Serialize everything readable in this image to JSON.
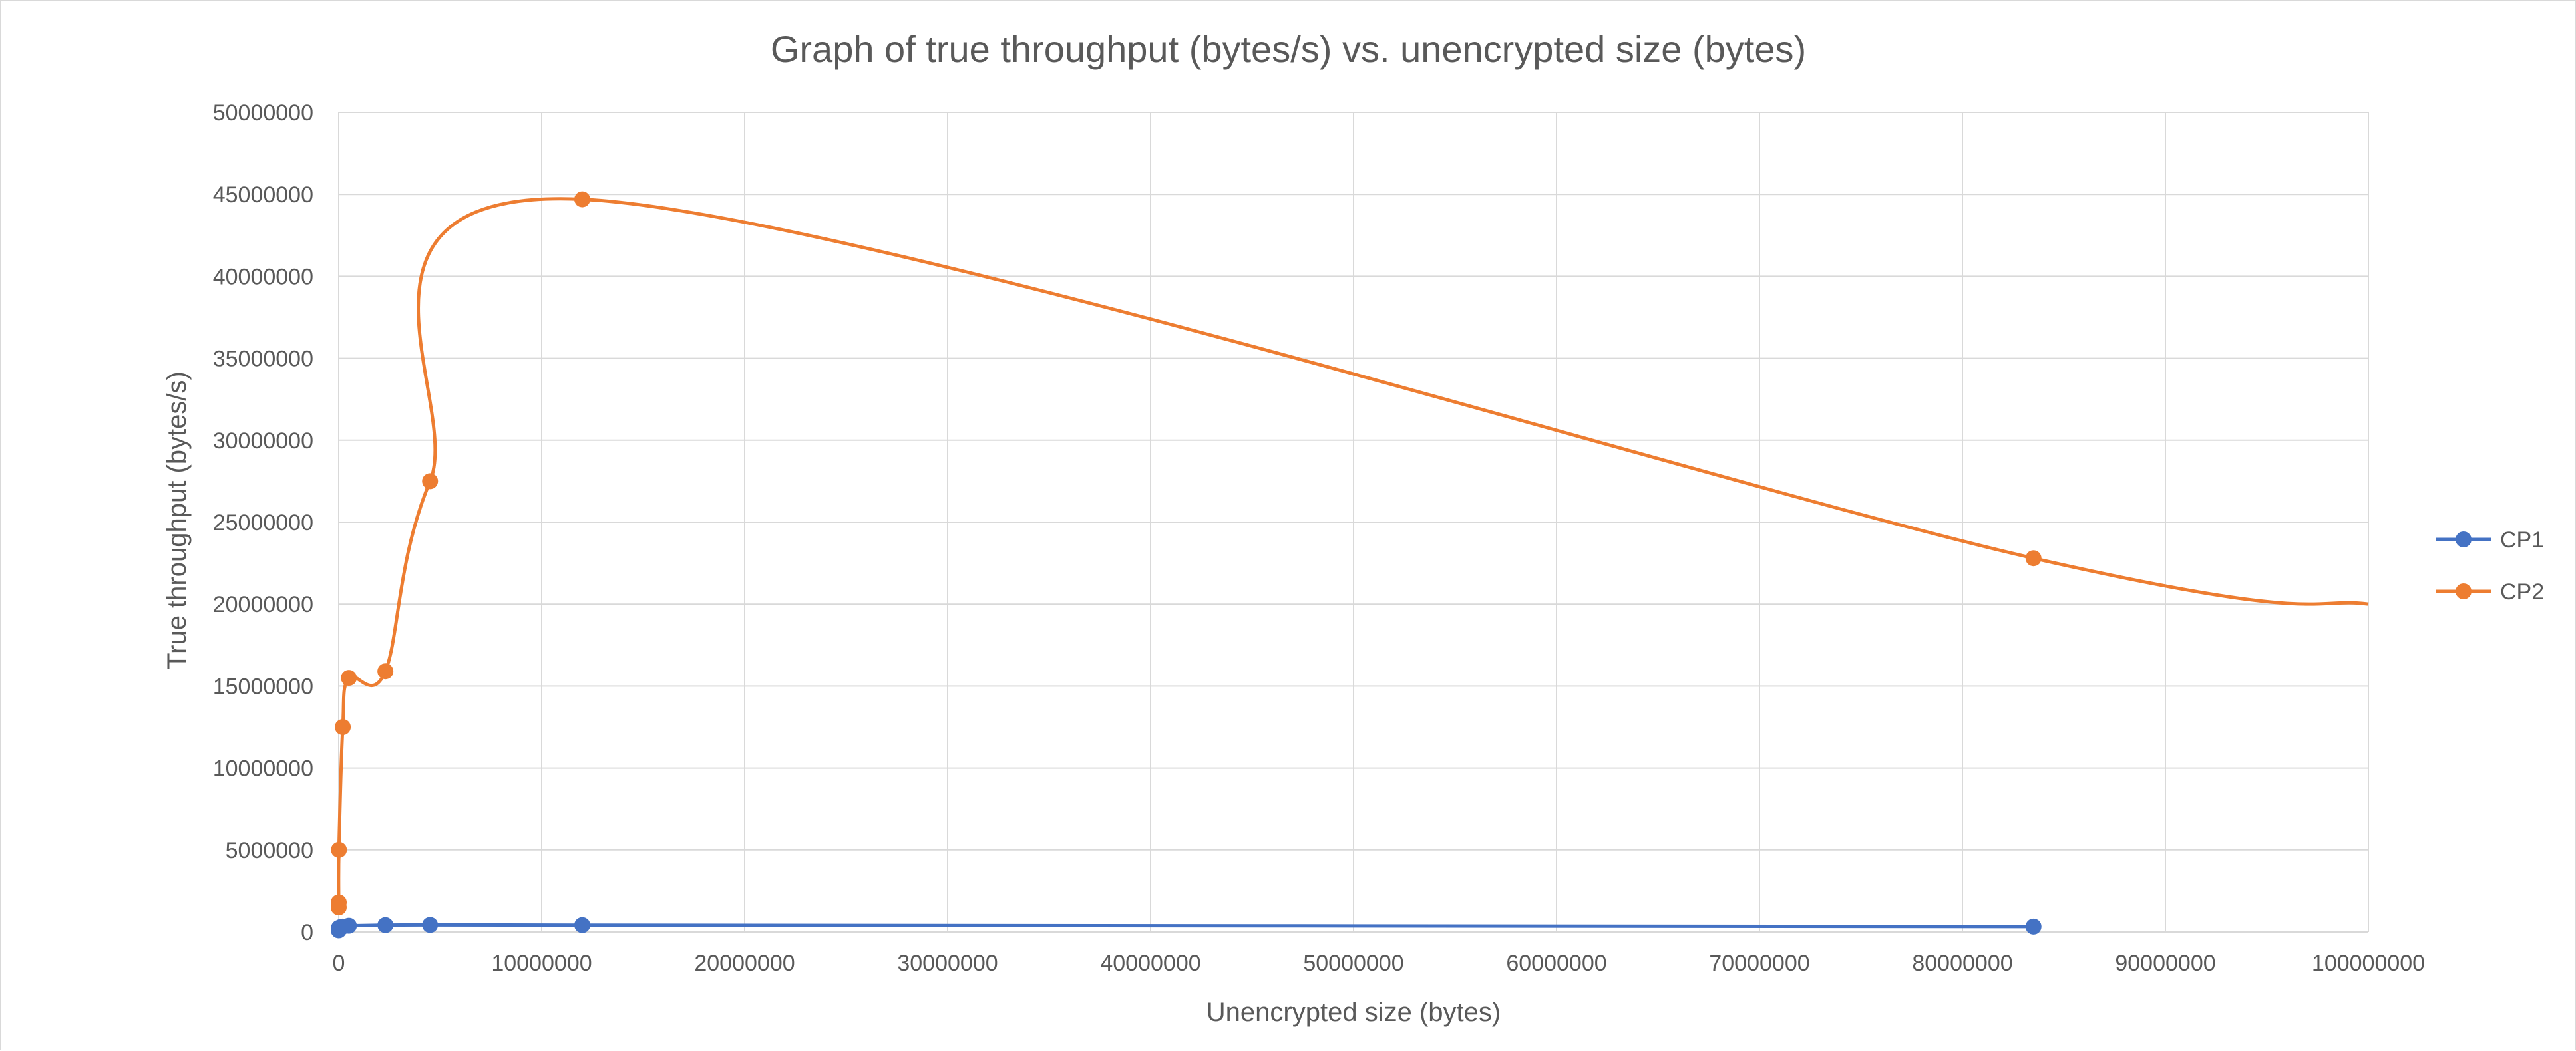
{
  "chart_data": {
    "type": "scatter",
    "title": "Graph of true throughput (bytes/s) vs. unencrypted size (bytes)",
    "xlabel": "Unencrypted size (bytes)",
    "ylabel": "True throughput (bytes/s)",
    "xlim": [
      0,
      100000000
    ],
    "ylim": [
      0,
      50000000
    ],
    "xticks": [
      "0",
      "10000000",
      "20000000",
      "30000000",
      "40000000",
      "50000000",
      "60000000",
      "70000000",
      "80000000",
      "90000000",
      "100000000"
    ],
    "yticks": [
      "0",
      "5000000",
      "10000000",
      "15000000",
      "20000000",
      "25000000",
      "30000000",
      "35000000",
      "40000000",
      "45000000",
      "50000000"
    ],
    "grid": true,
    "legend_position": "right",
    "smooth_lines": true,
    "series": [
      {
        "name": "CP1",
        "color": "#4472C4",
        "points": [
          [
            100,
            100000
          ],
          [
            1000,
            150000
          ],
          [
            10000,
            250000
          ],
          [
            100000,
            300000
          ],
          [
            200000,
            330000
          ],
          [
            500000,
            380000
          ],
          [
            2300000,
            420000
          ],
          [
            4500000,
            430000
          ],
          [
            12000000,
            420000
          ],
          [
            83500000,
            330000
          ]
        ]
      },
      {
        "name": "CP2",
        "color": "#ED7D31",
        "points": [
          [
            100,
            1500000
          ],
          [
            1000,
            1800000
          ],
          [
            10000,
            5000000
          ],
          [
            200000,
            12500000
          ],
          [
            500000,
            15500000
          ],
          [
            2300000,
            15900000
          ],
          [
            4500000,
            27500000
          ],
          [
            12000000,
            44700000
          ],
          [
            83500000,
            22800000
          ]
        ],
        "trail_end": [
          100000000,
          20000000
        ]
      }
    ]
  }
}
